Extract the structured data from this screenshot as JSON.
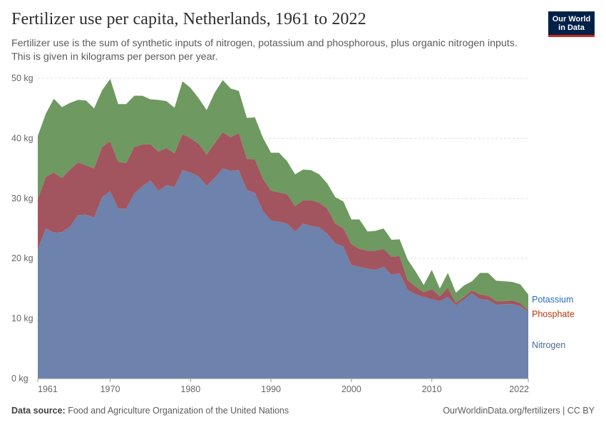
{
  "header": {
    "title": "Fertilizer use per capita, Netherlands, 1961 to 2022",
    "subtitle": "Fertilizer use is the sum of synthetic inputs of nitrogen, potassium and phosphorous, plus organic nitrogen inputs. This is given in kilograms per person per year."
  },
  "logo": {
    "line1": "Our World",
    "line2": "in Data",
    "bg_color": "#002147",
    "accent_color": "#ce261e"
  },
  "footer": {
    "source_label": "Data source:",
    "source_text": "Food and Agriculture Organization of the United Nations",
    "right_text": "OurWorldinData.org/fertilizers | CC BY"
  },
  "chart_data": {
    "type": "area",
    "stacked": true,
    "title": "Fertilizer use per capita, Netherlands, 1961 to 2022",
    "xlabel": "",
    "ylabel": "",
    "ylim": [
      0,
      50
    ],
    "xlim": [
      1961,
      2022
    ],
    "y_ticks": [
      0,
      10,
      20,
      30,
      40,
      50
    ],
    "y_tick_labels": [
      "0 kg",
      "10 kg",
      "20 kg",
      "30 kg",
      "40 kg",
      "50 kg"
    ],
    "x_ticks": [
      1961,
      1970,
      1980,
      1990,
      2000,
      2010,
      2022
    ],
    "x_tick_labels": [
      "1961",
      "1970",
      "1980",
      "1990",
      "2000",
      "2010",
      "2022"
    ],
    "grid": "horizontal-dashed",
    "x": [
      1961,
      1962,
      1963,
      1964,
      1965,
      1966,
      1967,
      1968,
      1969,
      1970,
      1971,
      1972,
      1973,
      1974,
      1975,
      1976,
      1977,
      1978,
      1979,
      1980,
      1981,
      1982,
      1983,
      1984,
      1985,
      1986,
      1987,
      1988,
      1989,
      1990,
      1991,
      1992,
      1993,
      1994,
      1995,
      1996,
      1997,
      1998,
      1999,
      2000,
      2001,
      2002,
      2003,
      2004,
      2005,
      2006,
      2007,
      2008,
      2009,
      2010,
      2011,
      2012,
      2013,
      2014,
      2015,
      2016,
      2017,
      2018,
      2019,
      2020,
      2021,
      2022
    ],
    "series": [
      {
        "name": "Nitrogen",
        "color": "#6d82ac",
        "label_color": "#4c6a9c",
        "values": [
          21.5,
          25.0,
          24.3,
          24.4,
          25.3,
          27.2,
          27.3,
          26.8,
          30.2,
          31.2,
          28.3,
          28.3,
          30.8,
          32.0,
          33.0,
          31.3,
          32.2,
          31.9,
          34.7,
          34.3,
          33.7,
          32.1,
          33.4,
          35.0,
          34.6,
          34.7,
          31.4,
          30.9,
          27.9,
          26.3,
          26.1,
          25.8,
          24.5,
          25.8,
          25.4,
          25.2,
          24.1,
          22.5,
          22.0,
          18.9,
          18.6,
          18.3,
          18.1,
          18.6,
          17.3,
          17.5,
          14.8,
          14.0,
          13.6,
          13.2,
          12.9,
          13.6,
          12.2,
          13.2,
          14.2,
          13.2,
          13.1,
          12.3,
          12.4,
          12.4,
          12.1,
          11.1
        ]
      },
      {
        "name": "Phosphate",
        "color": "#a2555e",
        "label_color": "#b13507",
        "values": [
          8.4,
          8.6,
          10.0,
          9.0,
          9.5,
          8.8,
          8.2,
          8.2,
          8.4,
          8.3,
          7.8,
          7.6,
          7.8,
          7.0,
          6.0,
          6.5,
          6.2,
          5.6,
          6.0,
          5.7,
          5.4,
          5.2,
          5.8,
          6.0,
          5.6,
          6.2,
          5.2,
          5.6,
          5.4,
          5.0,
          4.9,
          4.9,
          4.2,
          3.9,
          4.3,
          4.1,
          4.2,
          3.3,
          3.0,
          3.5,
          3.0,
          3.0,
          3.2,
          3.0,
          3.0,
          2.9,
          1.6,
          1.3,
          0.8,
          1.7,
          0.8,
          1.5,
          0.4,
          0.4,
          0.5,
          0.8,
          0.7,
          0.6,
          0.5,
          0.6,
          0.5,
          0.2
        ]
      },
      {
        "name": "Potassium",
        "color": "#6e9960",
        "label_color": "#286bbb",
        "values": [
          10.5,
          10.5,
          12.3,
          11.8,
          11.1,
          10.4,
          10.8,
          10.0,
          9.4,
          10.4,
          9.6,
          9.8,
          8.5,
          8.1,
          7.5,
          8.6,
          7.8,
          7.6,
          8.8,
          8.4,
          7.6,
          7.4,
          8.4,
          8.7,
          8.1,
          7.0,
          6.8,
          7.0,
          6.8,
          6.3,
          6.6,
          5.5,
          5.3,
          5.1,
          5.0,
          4.7,
          4.2,
          4.4,
          4.5,
          4.1,
          4.9,
          3.2,
          3.3,
          3.4,
          2.8,
          2.8,
          3.4,
          2.5,
          1.2,
          3.2,
          1.3,
          2.5,
          1.7,
          1.9,
          1.5,
          3.6,
          3.8,
          3.4,
          3.3,
          3.1,
          3.1,
          2.7
        ]
      }
    ]
  }
}
